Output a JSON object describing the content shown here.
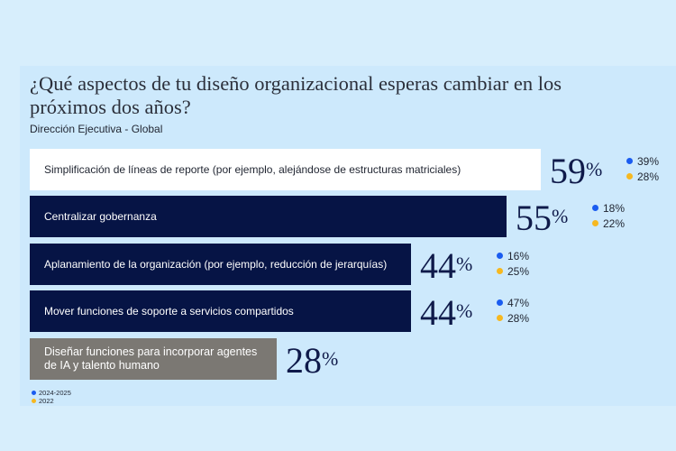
{
  "colors": {
    "series_2024": "#1a5cf0",
    "series_2022": "#f6b820",
    "dark_bar": "#061445",
    "white_bar": "#ffffff",
    "gray_bar": "#7b7873"
  },
  "chart_data": {
    "type": "bar",
    "title": "¿Qué aspectos de tu diseño organizacional esperas cambiar en los próximos dos años?",
    "subtitle": "Dirección Ejecutiva - Global",
    "categories": [
      "Simplificación de líneas de reporte (por ejemplo, alejándose de estructuras matriciales)",
      "Centralizar gobernanza",
      "Aplanamiento de la organización (por ejemplo, reducción de jerarquías)",
      "Mover funciones de soporte a servicios compartidos",
      "Diseñar funciones para incorporar agentes de IA y talento humano"
    ],
    "values": [
      59,
      55,
      44,
      44,
      28
    ],
    "value_labels": [
      "59",
      "55",
      "44",
      "44",
      "28"
    ],
    "unit": "%",
    "comparisons": [
      {
        "v2024": "39%",
        "v2022": "28%"
      },
      {
        "v2024": "18%",
        "v2022": "22%"
      },
      {
        "v2024": "16%",
        "v2022": "25%"
      },
      {
        "v2024": "47%",
        "v2022": "28%"
      },
      null
    ],
    "legend": [
      "2024-2025",
      "2022"
    ]
  }
}
